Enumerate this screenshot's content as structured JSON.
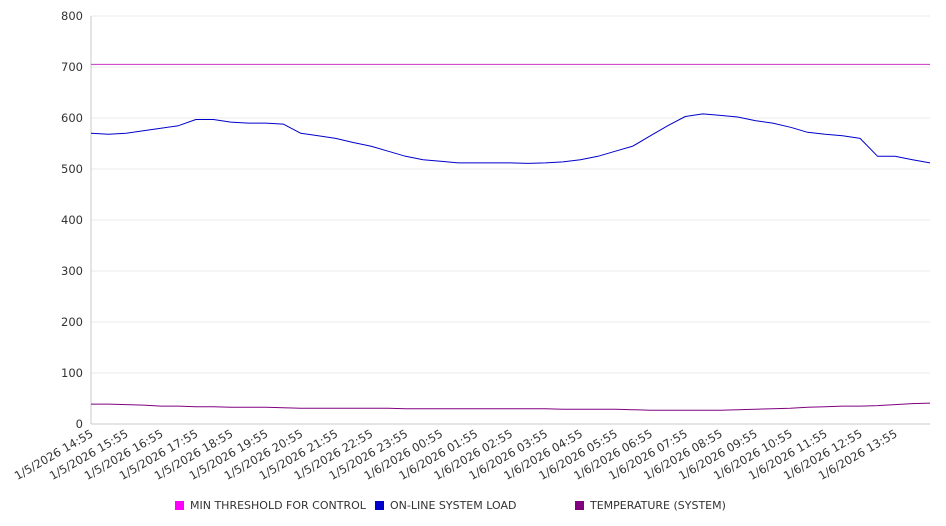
{
  "chart_data": {
    "type": "line",
    "title": "",
    "xlabel": "",
    "ylabel": "",
    "ylim": [
      0,
      800
    ],
    "yticks": [
      0,
      100,
      200,
      300,
      400,
      500,
      600,
      700,
      800
    ],
    "x_tick_labels": [
      "1/5/2026 14:55",
      "1/5/2026 15:55",
      "1/5/2026 16:55",
      "1/5/2026 17:55",
      "1/5/2026 18:55",
      "1/5/2026 19:55",
      "1/5/2026 20:55",
      "1/5/2026 21:55",
      "1/5/2026 22:55",
      "1/5/2026 23:55",
      "1/6/2026 00:55",
      "1/6/2026 01:55",
      "1/6/2026 02:55",
      "1/6/2026 03:55",
      "1/6/2026 04:55",
      "1/6/2026 05:55",
      "1/6/2026 06:55",
      "1/6/2026 07:55",
      "1/6/2026 08:55",
      "1/6/2026 09:55",
      "1/6/2026 10:55",
      "1/6/2026 11:55",
      "1/6/2026 12:55",
      "1/6/2026 13:55"
    ],
    "x_hours": [
      0,
      0.5,
      1,
      1.5,
      2,
      2.5,
      3,
      3.5,
      4,
      4.5,
      5,
      5.5,
      6,
      6.5,
      7,
      7.5,
      8,
      8.5,
      9,
      9.5,
      10,
      10.5,
      11,
      11.5,
      12,
      12.5,
      13,
      13.5,
      14,
      14.5,
      15,
      15.5,
      16,
      16.5,
      17,
      17.5,
      18,
      18.5,
      19,
      19.5,
      20,
      20.5,
      21,
      21.5,
      22,
      22.5,
      23,
      23.5,
      24
    ],
    "x_range_hours": [
      0,
      24
    ],
    "grid": true,
    "legend_position": "bottom",
    "series": [
      {
        "name": "MIN THRESHOLD FOR CONTROL",
        "color": "#cc33cc",
        "values": [
          705,
          705,
          705,
          705,
          705,
          705,
          705,
          705,
          705,
          705,
          705,
          705,
          705,
          705,
          705,
          705,
          705,
          705,
          705,
          705,
          705,
          705,
          705,
          705,
          705,
          705,
          705,
          705,
          705,
          705,
          705,
          705,
          705,
          705,
          705,
          705,
          705,
          705,
          705,
          705,
          705,
          705,
          705,
          705,
          705,
          705,
          705,
          705,
          705
        ]
      },
      {
        "name": "ON-LINE SYSTEM LOAD",
        "color": "#0000cc",
        "values": [
          570,
          568,
          570,
          575,
          580,
          585,
          597,
          597,
          592,
          590,
          590,
          588,
          570,
          565,
          560,
          552,
          545,
          535,
          525,
          518,
          515,
          512,
          512,
          512,
          512,
          511,
          512,
          514,
          518,
          525,
          535,
          545,
          565,
          585,
          603,
          608,
          605,
          602,
          595,
          590,
          582,
          572,
          568,
          565,
          560,
          525,
          525,
          518,
          512
        ]
      },
      {
        "name": "TEMPERATURE (SYSTEM)",
        "color": "#800080",
        "values": [
          39,
          39,
          38,
          37,
          35,
          35,
          34,
          34,
          33,
          33,
          33,
          32,
          31,
          31,
          31,
          31,
          31,
          31,
          30,
          30,
          30,
          30,
          30,
          30,
          30,
          30,
          30,
          29,
          29,
          29,
          29,
          28,
          27,
          27,
          27,
          27,
          27,
          28,
          29,
          30,
          31,
          33,
          34,
          35,
          35,
          36,
          38,
          40,
          41
        ]
      }
    ]
  }
}
